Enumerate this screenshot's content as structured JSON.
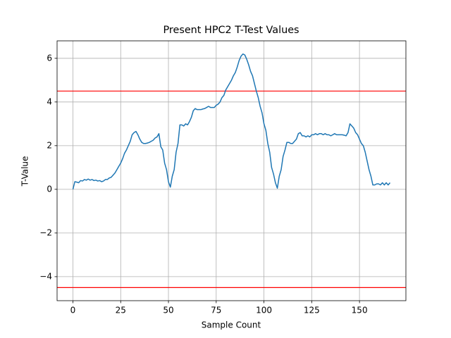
{
  "chart_data": {
    "type": "line",
    "title": "Present HPC2 T-Test Values",
    "x_label": "Sample Count",
    "y_label": "T-Value",
    "x": [
      0,
      1,
      2,
      3,
      4,
      5,
      6,
      7,
      8,
      9,
      10,
      11,
      12,
      13,
      14,
      15,
      16,
      17,
      18,
      19,
      20,
      21,
      22,
      23,
      24,
      25,
      26,
      27,
      28,
      29,
      30,
      31,
      32,
      33,
      34,
      35,
      36,
      37,
      38,
      39,
      40,
      41,
      42,
      43,
      44,
      45,
      46,
      47,
      48,
      49,
      50,
      51,
      52,
      53,
      54,
      55,
      56,
      57,
      58,
      59,
      60,
      61,
      62,
      63,
      64,
      65,
      66,
      67,
      68,
      69,
      70,
      71,
      72,
      73,
      74,
      75,
      76,
      77,
      78,
      79,
      80,
      81,
      82,
      83,
      84,
      85,
      86,
      87,
      88,
      89,
      90,
      91,
      92,
      93,
      94,
      95,
      96,
      97,
      98,
      99,
      100,
      101,
      102,
      103,
      104,
      105,
      106,
      107,
      108,
      109,
      110,
      111,
      112,
      113,
      114,
      115,
      116,
      117,
      118,
      119,
      120,
      121,
      122,
      123,
      124,
      125,
      126,
      127,
      128,
      129,
      130,
      131,
      132,
      133,
      134,
      135,
      136,
      137,
      138,
      139,
      140,
      141,
      142,
      143,
      144,
      145,
      146,
      147,
      148,
      149,
      150,
      151,
      152,
      153,
      154,
      155,
      156,
      157,
      158,
      159,
      160,
      161,
      162,
      163,
      164,
      165,
      166
    ],
    "series": [
      {
        "color": "#1f77b4",
        "values": [
          0.0,
          0.35,
          0.33,
          0.3,
          0.4,
          0.38,
          0.45,
          0.42,
          0.47,
          0.42,
          0.45,
          0.4,
          0.42,
          0.38,
          0.4,
          0.35,
          0.38,
          0.45,
          0.45,
          0.52,
          0.55,
          0.65,
          0.75,
          0.9,
          1.05,
          1.2,
          1.4,
          1.65,
          1.8,
          2.0,
          2.2,
          2.5,
          2.6,
          2.65,
          2.5,
          2.3,
          2.15,
          2.1,
          2.1,
          2.12,
          2.15,
          2.2,
          2.25,
          2.35,
          2.4,
          2.55,
          1.95,
          1.8,
          1.2,
          0.9,
          0.35,
          0.1,
          0.6,
          0.9,
          1.7,
          2.1,
          2.95,
          2.95,
          2.9,
          3.0,
          2.95,
          3.1,
          3.3,
          3.6,
          3.7,
          3.65,
          3.65,
          3.65,
          3.68,
          3.7,
          3.75,
          3.8,
          3.75,
          3.75,
          3.75,
          3.85,
          3.9,
          4.0,
          4.2,
          4.3,
          4.55,
          4.7,
          4.85,
          5.0,
          5.2,
          5.35,
          5.6,
          5.9,
          6.1,
          6.2,
          6.15,
          5.95,
          5.7,
          5.4,
          5.2,
          4.85,
          4.5,
          4.2,
          3.8,
          3.5,
          3.0,
          2.7,
          2.1,
          1.7,
          1.0,
          0.7,
          0.3,
          0.05,
          0.6,
          0.9,
          1.5,
          1.8,
          2.15,
          2.15,
          2.1,
          2.1,
          2.2,
          2.3,
          2.55,
          2.6,
          2.45,
          2.45,
          2.4,
          2.45,
          2.4,
          2.5,
          2.5,
          2.55,
          2.5,
          2.55,
          2.55,
          2.5,
          2.55,
          2.5,
          2.5,
          2.45,
          2.5,
          2.55,
          2.5,
          2.5,
          2.5,
          2.5,
          2.48,
          2.45,
          2.6,
          3.0,
          2.9,
          2.8,
          2.6,
          2.5,
          2.3,
          2.1,
          2.0,
          1.7,
          1.3,
          0.9,
          0.6,
          0.2,
          0.2,
          0.25,
          0.25,
          0.2,
          0.3,
          0.2,
          0.3,
          0.2,
          0.3
        ]
      }
    ],
    "hlines": [
      4.5,
      -4.5
    ],
    "hline_color": "#ff0000",
    "xlim": [
      -8.3,
      174.3
    ],
    "ylim": [
      -5.1,
      6.8
    ],
    "xticks": [
      0,
      25,
      50,
      75,
      100,
      125,
      150
    ],
    "yticks": [
      {
        "value": -4,
        "label": "−4"
      },
      {
        "value": -2,
        "label": "−2"
      },
      0,
      2,
      4,
      6
    ],
    "grid": true
  }
}
